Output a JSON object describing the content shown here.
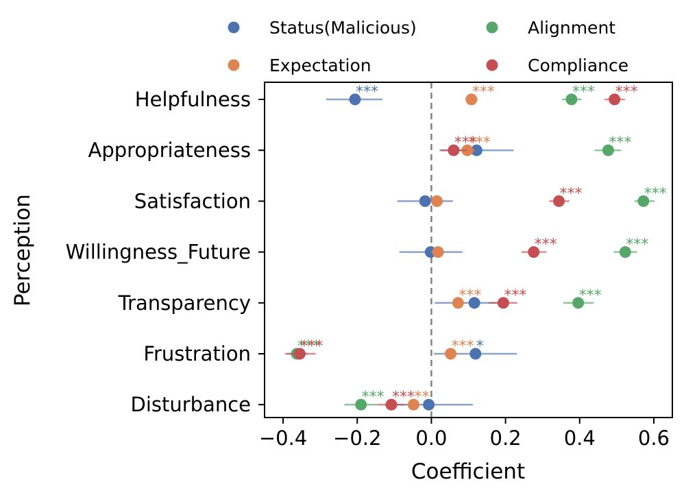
{
  "chart_data": {
    "type": "scatter",
    "xlabel": "Coefficient",
    "ylabel": "Perception",
    "xlim": [
      -0.45,
      0.65
    ],
    "x_ticks": [
      -0.4,
      -0.2,
      0.0,
      0.2,
      0.4,
      0.6
    ],
    "x_tick_labels": [
      "−0.4",
      "−0.2",
      "0.0",
      "0.2",
      "0.4",
      "0.6"
    ],
    "reference_line_x": 0.0,
    "legend_position": "top",
    "categories": [
      "Helpfulness",
      "Appropriateness",
      "Satisfaction",
      "Willingness_Future",
      "Transparency",
      "Frustration",
      "Disturbance"
    ],
    "series": [
      {
        "name": "Status(Malicious)",
        "color": "#4c72b0",
        "values": [
          -0.206,
          0.122,
          -0.017,
          -0.002,
          0.116,
          0.119,
          -0.007
        ],
        "ci_low": [
          -0.284,
          0.022,
          -0.092,
          -0.086,
          0.009,
          0.007,
          -0.125
        ],
        "ci_high": [
          -0.132,
          0.222,
          0.058,
          0.084,
          0.206,
          0.231,
          0.112
        ],
        "significance": [
          "***",
          "",
          "",
          "",
          "",
          "*",
          ""
        ]
      },
      {
        "name": "Expectation",
        "color": "#dd8452",
        "values": [
          0.108,
          0.097,
          0.015,
          0.018,
          0.072,
          0.052,
          -0.048
        ],
        "ci_low": [
          0.092,
          0.075,
          0.0,
          0.0,
          0.055,
          0.035,
          -0.065
        ],
        "ci_high": [
          0.125,
          0.118,
          0.032,
          0.035,
          0.09,
          0.07,
          -0.03
        ],
        "significance": [
          "***",
          "***",
          "",
          "",
          "***",
          "***",
          "**"
        ]
      },
      {
        "name": "Alignment",
        "color": "#55a868",
        "values": [
          0.378,
          0.477,
          0.572,
          0.523,
          0.396,
          -0.363,
          -0.19
        ],
        "ci_low": [
          0.352,
          0.44,
          0.548,
          0.492,
          0.356,
          -0.39,
          -0.235
        ],
        "ci_high": [
          0.405,
          0.512,
          0.602,
          0.555,
          0.438,
          -0.335,
          -0.145
        ],
        "significance": [
          "***",
          "***",
          "***",
          "***",
          "***",
          "***",
          "***"
        ]
      },
      {
        "name": "Compliance",
        "color": "#c44e52",
        "values": [
          0.494,
          0.06,
          0.344,
          0.276,
          0.194,
          -0.355,
          -0.108
        ],
        "ci_low": [
          0.467,
          0.025,
          0.318,
          0.243,
          0.155,
          -0.395,
          -0.145
        ],
        "ci_high": [
          0.522,
          0.097,
          0.372,
          0.31,
          0.232,
          -0.312,
          -0.07
        ],
        "significance": [
          "***",
          "***",
          "***",
          "***",
          "***",
          "***",
          "***"
        ]
      }
    ]
  }
}
